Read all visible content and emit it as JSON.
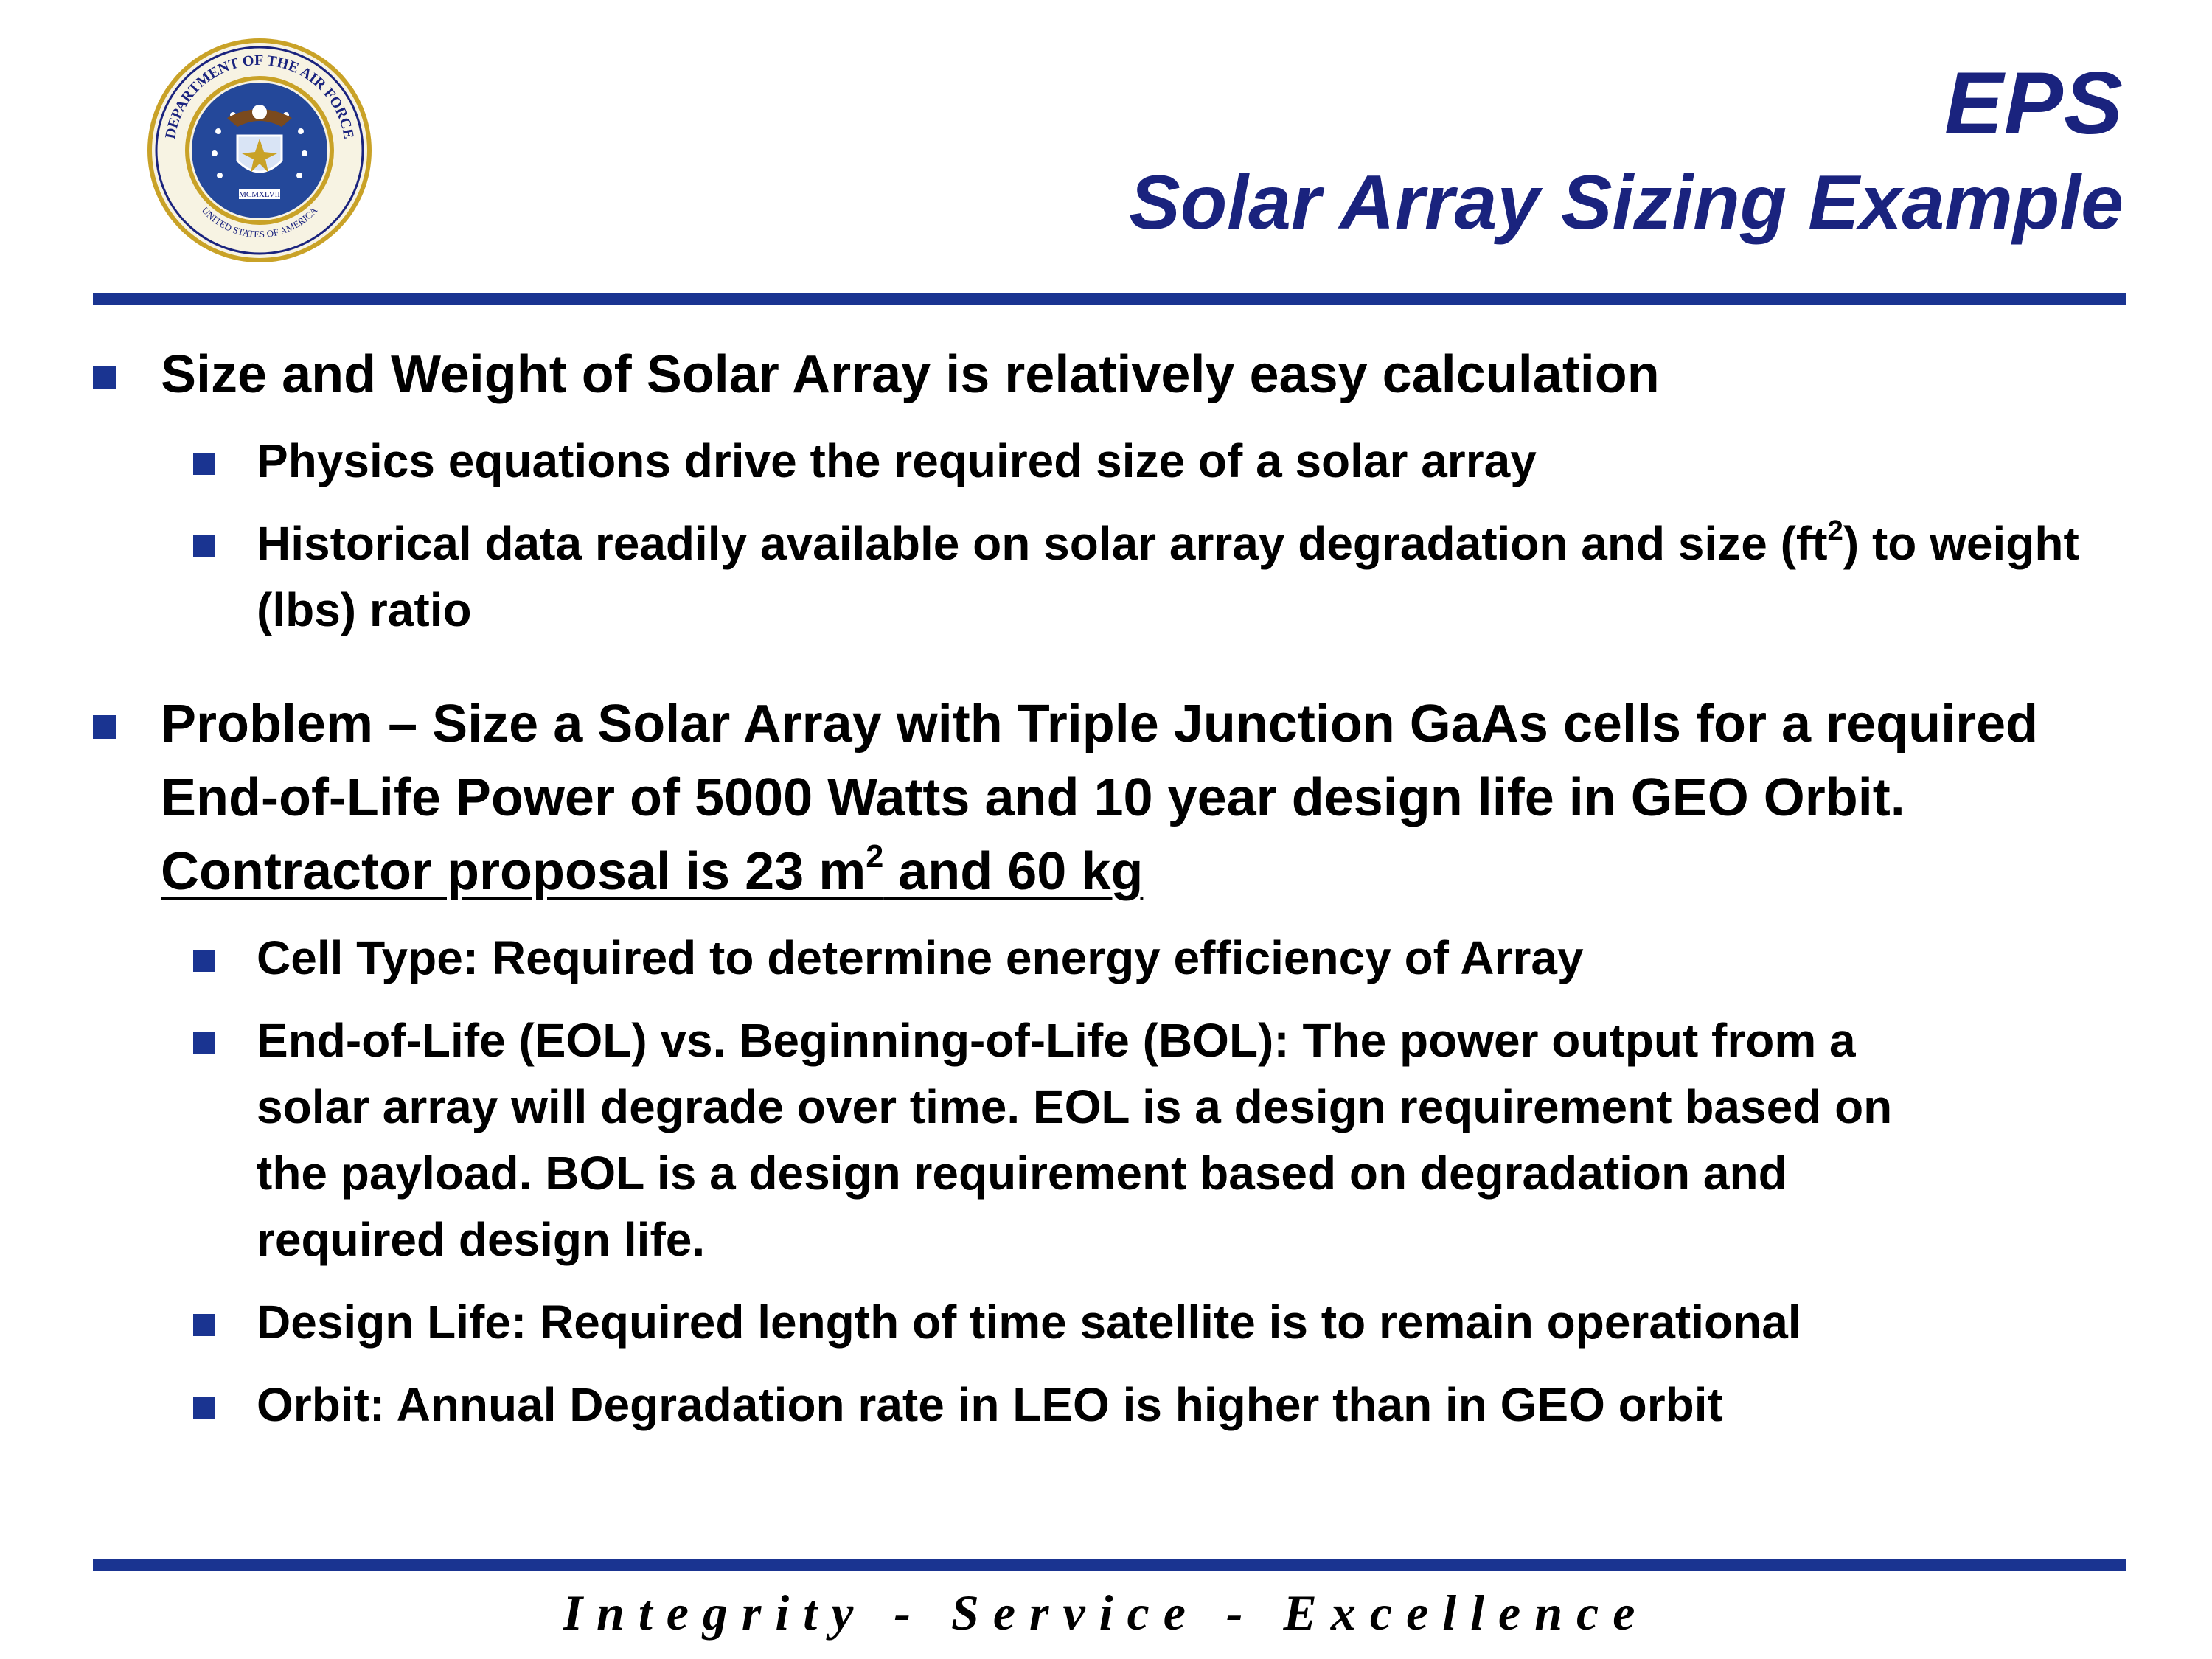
{
  "header": {
    "title": "EPS",
    "subtitle": "Solar Array Sizing Example",
    "seal": {
      "outer_text": "DEPARTMENT OF THE AIR FORCE",
      "bottom_text": "UNITED STATES OF AMERICA",
      "numeral": "MCMXLVII"
    }
  },
  "colors": {
    "title": "#1a237e",
    "rule": "#1a3491",
    "bullet": "#1a3491"
  },
  "bullets": [
    {
      "text": "Size and Weight of Solar Array is relatively easy calculation",
      "sub": [
        {
          "text": "Physics equations drive the required size of a solar array"
        },
        {
          "pre": "Historical data readily available on solar array degradation and size (ft",
          "sup": "2",
          "post": ") to weight (lbs) ratio"
        }
      ]
    },
    {
      "text": "Problem – Size a Solar Array with Triple Junction GaAs cells for a required End-of-Life Power of 5000 Watts and 10 year design life in GEO Orbit.",
      "underlined_pre": "Contractor proposal is 23 m",
      "underlined_sup": "2",
      "underlined_post": " and 60 kg",
      "sub": [
        {
          "text": "Cell Type:  Required to determine energy efficiency of Array"
        },
        {
          "text": "End-of-Life (EOL) vs. Beginning-of-Life (BOL):  The power output from a solar array will degrade over time.  EOL is a design requirement based on the payload.  BOL is a design requirement based on degradation and required design life."
        },
        {
          "text": "Design Life:  Required length of time satellite is to remain operational"
        },
        {
          "text": "Orbit: Annual Degradation rate in LEO is higher than in GEO orbit"
        }
      ]
    }
  ],
  "footer": "Integrity - Service - Excellence"
}
